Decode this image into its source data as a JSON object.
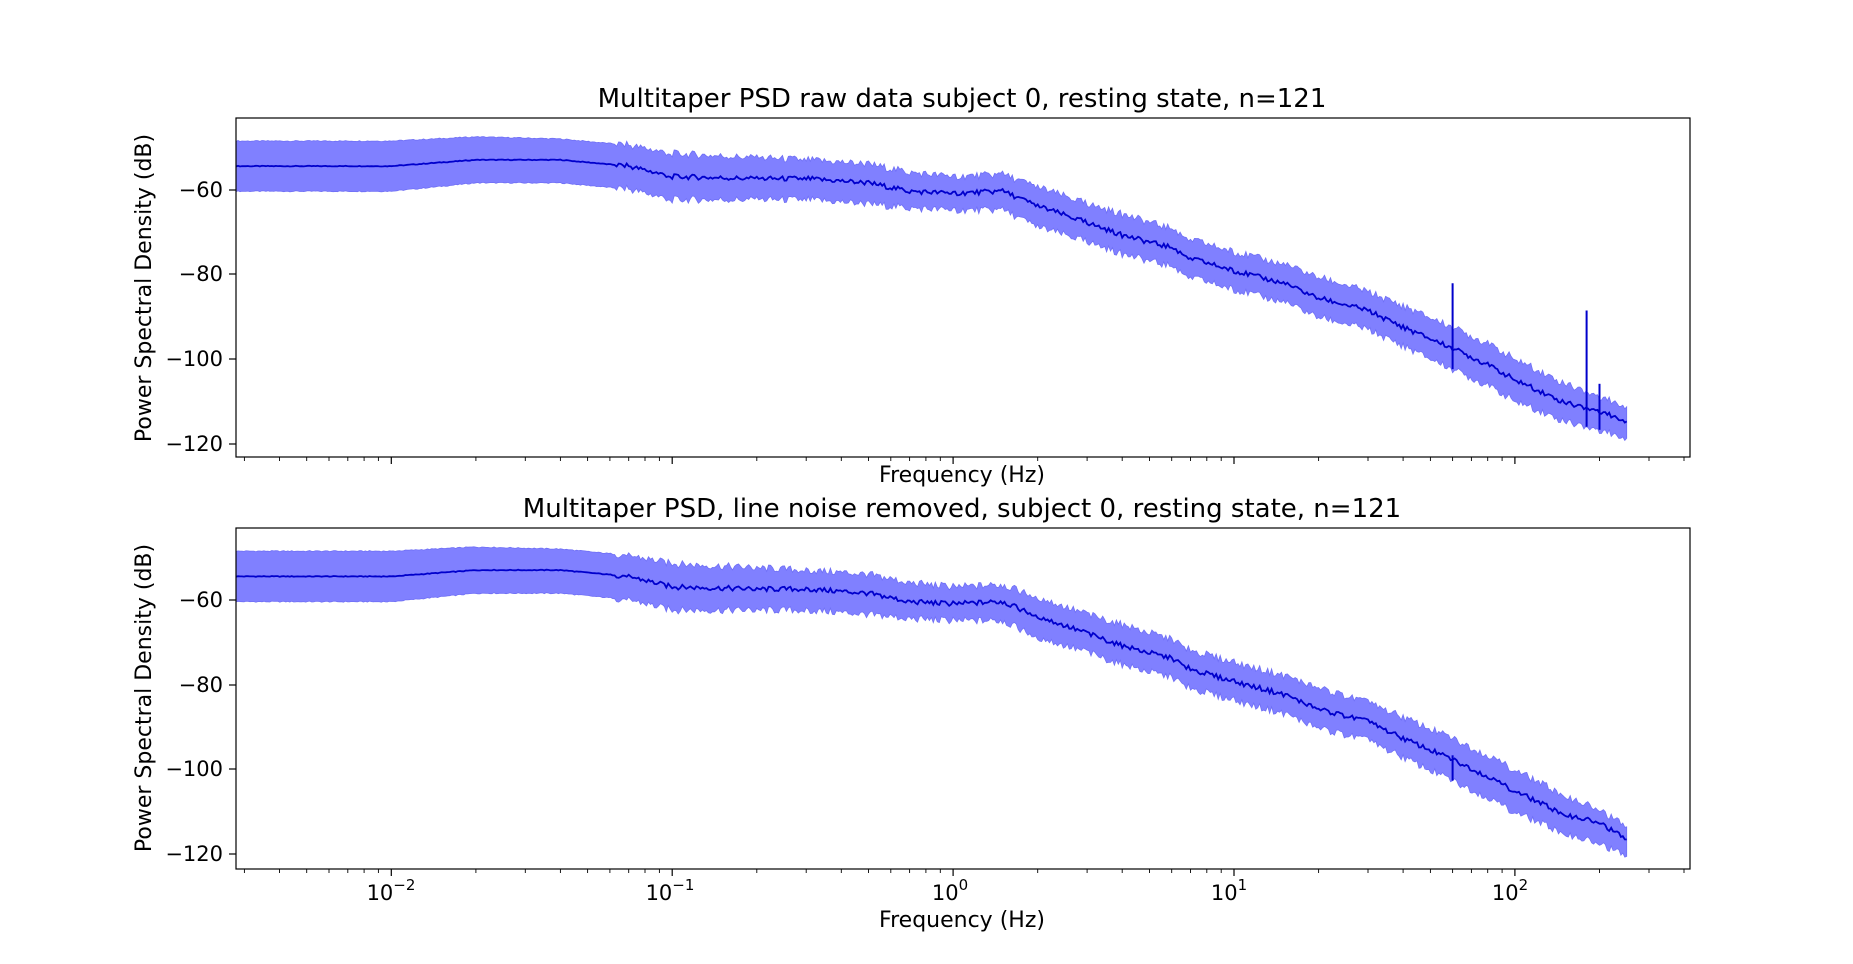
{
  "chart_data": [
    {
      "type": "line",
      "title": "Multitaper PSD raw data subject 0, resting state, n=121",
      "xlabel": "Frequency (Hz)",
      "ylabel": "Power Spectral Density (dB)",
      "xscale": "log",
      "xlim": [
        0.0028,
        420
      ],
      "ylim": [
        -123,
        -42
      ],
      "yticks": [
        -60,
        -80,
        -100,
        -120
      ],
      "ytick_labels": [
        "−60",
        "−80",
        "−100",
        "−120"
      ],
      "grid": false,
      "colors": {
        "line": "#0000cc",
        "band": "#8080ff"
      },
      "series": [
        {
          "type": "mean",
          "x": [
            0.0028,
            0.01,
            0.02,
            0.04,
            0.07,
            0.1,
            0.2,
            0.3,
            0.5,
            0.7,
            1.0,
            1.5,
            2,
            3,
            4,
            6,
            7,
            10,
            15,
            20,
            30,
            40,
            60,
            80,
            100,
            150,
            200,
            250
          ],
          "values": [
            -53.5,
            -53.5,
            -52,
            -52,
            -53.5,
            -56,
            -56.5,
            -56.5,
            -57.5,
            -59.5,
            -60,
            -59.5,
            -63,
            -67,
            -70,
            -73,
            -75.5,
            -78.5,
            -81.5,
            -85,
            -88,
            -92,
            -97,
            -101,
            -104.5,
            -110,
            -112,
            -114.5
          ]
        },
        {
          "type": "band_upper",
          "x": [
            0.0028,
            0.01,
            0.02,
            0.04,
            0.07,
            0.1,
            0.2,
            0.3,
            0.5,
            0.7,
            1.0,
            1.5,
            2,
            3,
            4,
            6,
            7,
            10,
            15,
            20,
            30,
            40,
            60,
            80,
            100,
            150,
            200,
            250
          ],
          "values": [
            -47.5,
            -47.5,
            -46.5,
            -47,
            -48.5,
            -50.5,
            -51.5,
            -52,
            -53,
            -55,
            -56,
            -55.5,
            -58.5,
            -62.5,
            -65,
            -68.5,
            -71,
            -74,
            -77,
            -80,
            -83.5,
            -87,
            -92,
            -96,
            -99.5,
            -105.5,
            -108.5,
            -111
          ]
        },
        {
          "type": "band_lower",
          "x": [
            0.0028,
            0.01,
            0.02,
            0.04,
            0.07,
            0.1,
            0.2,
            0.3,
            0.5,
            0.7,
            1.0,
            1.5,
            2,
            3,
            4,
            6,
            7,
            10,
            15,
            20,
            30,
            40,
            60,
            80,
            100,
            150,
            200,
            250
          ],
          "values": [
            -59.5,
            -59.5,
            -57.5,
            -57.5,
            -59,
            -61.5,
            -61.5,
            -61.5,
            -62.5,
            -63.5,
            -64,
            -64,
            -68,
            -71.5,
            -74.5,
            -77.5,
            -80,
            -83,
            -86,
            -89.5,
            -92.5,
            -96.5,
            -102,
            -106,
            -109.5,
            -114.5,
            -116.5,
            -118.5
          ]
        }
      ],
      "spikes": [
        {
          "x": 60,
          "top": -81.5
        },
        {
          "x": 180,
          "top": -88
        },
        {
          "x": 200,
          "top": -105.5
        }
      ]
    },
    {
      "type": "line",
      "title": "Multitaper PSD, line noise removed, subject 0, resting state, n=121",
      "xlabel": "Frequency (Hz)",
      "ylabel": "Power Spectral Density (dB)",
      "xscale": "log",
      "xlim": [
        0.0028,
        420
      ],
      "ylim": [
        -123,
        -42
      ],
      "xticks": [
        0.01,
        0.1,
        1,
        10,
        100
      ],
      "xtick_labels": [
        {
          "base": "10",
          "exp": "−2"
        },
        {
          "base": "10",
          "exp": "−1"
        },
        {
          "base": "10",
          "exp": "0"
        },
        {
          "base": "10",
          "exp": "1"
        },
        {
          "base": "10",
          "exp": "2"
        }
      ],
      "yticks": [
        -60,
        -80,
        -100,
        -120
      ],
      "ytick_labels": [
        "−60",
        "−80",
        "−100",
        "−120"
      ],
      "grid": false,
      "colors": {
        "line": "#0000cc",
        "band": "#8080ff"
      },
      "series": [
        {
          "type": "mean",
          "x": [
            0.0028,
            0.01,
            0.02,
            0.04,
            0.07,
            0.1,
            0.2,
            0.3,
            0.5,
            0.7,
            1.0,
            1.5,
            2,
            3,
            4,
            6,
            7,
            10,
            15,
            20,
            30,
            40,
            60,
            80,
            100,
            150,
            200,
            250
          ],
          "values": [
            -53.5,
            -53.5,
            -52,
            -52,
            -53.5,
            -56,
            -56.5,
            -56.5,
            -57.5,
            -59.5,
            -60,
            -59.5,
            -63,
            -67,
            -70,
            -73,
            -75.5,
            -78.5,
            -81.5,
            -85,
            -88,
            -92,
            -97,
            -101,
            -104.5,
            -110,
            -112,
            -116
          ]
        },
        {
          "type": "band_upper",
          "x": [
            0.0028,
            0.01,
            0.02,
            0.04,
            0.07,
            0.1,
            0.2,
            0.3,
            0.5,
            0.7,
            1.0,
            1.5,
            2,
            3,
            4,
            6,
            7,
            10,
            15,
            20,
            30,
            40,
            60,
            80,
            100,
            150,
            200,
            250
          ],
          "values": [
            -47.5,
            -47.5,
            -46.5,
            -47,
            -48.5,
            -50.5,
            -51.5,
            -52,
            -53,
            -55,
            -56,
            -55.5,
            -58.5,
            -62.5,
            -65,
            -68.5,
            -71,
            -74,
            -77,
            -80,
            -83.5,
            -87,
            -92,
            -96,
            -99.5,
            -105.5,
            -109,
            -113
          ]
        },
        {
          "type": "band_lower",
          "x": [
            0.0028,
            0.01,
            0.02,
            0.04,
            0.07,
            0.1,
            0.2,
            0.3,
            0.5,
            0.7,
            1.0,
            1.5,
            2,
            3,
            4,
            6,
            7,
            10,
            15,
            20,
            30,
            40,
            60,
            80,
            100,
            150,
            200,
            250
          ],
          "values": [
            -59.5,
            -59.5,
            -57.5,
            -57.5,
            -59,
            -61.5,
            -61.5,
            -61.5,
            -62.5,
            -63.5,
            -64,
            -64,
            -68,
            -71.5,
            -74.5,
            -77.5,
            -80,
            -83,
            -86,
            -89.5,
            -92.5,
            -96.5,
            -102,
            -106,
            -109.5,
            -114.5,
            -117,
            -120
          ]
        }
      ],
      "spikes": [
        {
          "x": 60,
          "top": -96
        }
      ]
    }
  ]
}
